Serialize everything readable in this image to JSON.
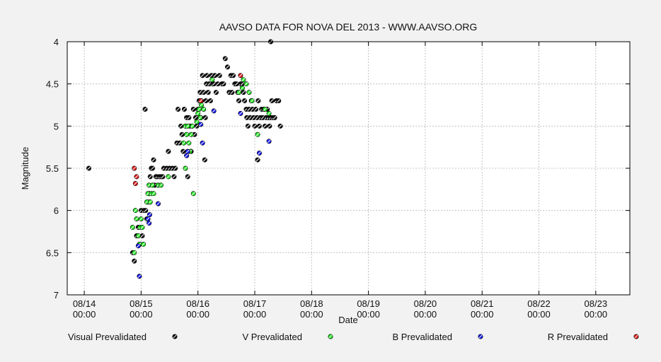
{
  "chart_data": {
    "type": "scatter",
    "title": "AAVSO DATA FOR NOVA DEL 2013 - WWW.AAVSO.ORG",
    "xlabel": "Date",
    "ylabel": "Magnitude",
    "x_ticks": [
      {
        "day": 14,
        "line1": "08/14",
        "line2": "00:00"
      },
      {
        "day": 15,
        "line1": "08/15",
        "line2": "00:00"
      },
      {
        "day": 16,
        "line1": "08/16",
        "line2": "00:00"
      },
      {
        "day": 17,
        "line1": "08/17",
        "line2": "00:00"
      },
      {
        "day": 18,
        "line1": "08/18",
        "line2": "00:00"
      },
      {
        "day": 19,
        "line1": "08/19",
        "line2": "00:00"
      },
      {
        "day": 20,
        "line1": "08/20",
        "line2": "00:00"
      },
      {
        "day": 21,
        "line1": "08/21",
        "line2": "00:00"
      },
      {
        "day": 22,
        "line1": "08/22",
        "line2": "00:00"
      },
      {
        "day": 23,
        "line1": "08/23",
        "line2": "00:00"
      }
    ],
    "x_range_days": [
      13.7,
      23.6
    ],
    "y_ticks": [
      "4",
      "4.5",
      "5",
      "5.5",
      "6",
      "6.5",
      "7"
    ],
    "y_range": [
      4,
      7
    ],
    "y_inverted": true,
    "grid": true,
    "legend_position": "bottom",
    "series": [
      {
        "name": "Visual Prevalidated",
        "color": "#111111",
        "points": [
          [
            14.08,
            5.5
          ],
          [
            14.85,
            6.5
          ],
          [
            14.88,
            6.6
          ],
          [
            14.92,
            6.3
          ],
          [
            14.95,
            6.2
          ],
          [
            14.98,
            6.4
          ],
          [
            15.0,
            6.0
          ],
          [
            15.02,
            6.3
          ],
          [
            15.05,
            6.0
          ],
          [
            15.07,
            4.8
          ],
          [
            15.08,
            6.0
          ],
          [
            15.1,
            6.1
          ],
          [
            15.12,
            5.9
          ],
          [
            15.14,
            5.8
          ],
          [
            15.15,
            5.9
          ],
          [
            15.16,
            5.6
          ],
          [
            15.18,
            5.5
          ],
          [
            15.2,
            5.5
          ],
          [
            15.22,
            5.4
          ],
          [
            15.24,
            5.7
          ],
          [
            15.26,
            5.6
          ],
          [
            15.28,
            5.6
          ],
          [
            15.3,
            5.7
          ],
          [
            15.32,
            5.6
          ],
          [
            15.35,
            5.6
          ],
          [
            15.38,
            5.6
          ],
          [
            15.4,
            5.5
          ],
          [
            15.45,
            5.5
          ],
          [
            15.48,
            5.3
          ],
          [
            15.5,
            5.5
          ],
          [
            15.55,
            5.5
          ],
          [
            15.58,
            5.6
          ],
          [
            15.6,
            5.5
          ],
          [
            15.63,
            5.2
          ],
          [
            15.65,
            4.8
          ],
          [
            15.68,
            5.2
          ],
          [
            15.7,
            5.0
          ],
          [
            15.72,
            5.1
          ],
          [
            15.74,
            5.3
          ],
          [
            15.76,
            4.8
          ],
          [
            15.78,
            5.0
          ],
          [
            15.8,
            4.9
          ],
          [
            15.82,
            5.6
          ],
          [
            15.84,
            4.9
          ],
          [
            15.86,
            5.0
          ],
          [
            15.88,
            5.3
          ],
          [
            15.9,
            5.0
          ],
          [
            15.92,
            4.8
          ],
          [
            15.94,
            5.1
          ],
          [
            15.96,
            4.9
          ],
          [
            15.98,
            5.0
          ],
          [
            16.0,
            4.8
          ],
          [
            16.02,
            4.7
          ],
          [
            16.04,
            4.6
          ],
          [
            16.05,
            4.9
          ],
          [
            16.06,
            4.7
          ],
          [
            16.08,
            4.4
          ],
          [
            16.1,
            4.6
          ],
          [
            16.12,
            5.4
          ],
          [
            16.13,
            4.9
          ],
          [
            16.14,
            4.7
          ],
          [
            16.15,
            4.5
          ],
          [
            16.16,
            4.4
          ],
          [
            16.18,
            4.6
          ],
          [
            16.2,
            4.5
          ],
          [
            16.22,
            4.7
          ],
          [
            16.24,
            4.4
          ],
          [
            16.26,
            4.5
          ],
          [
            16.28,
            4.5
          ],
          [
            16.3,
            4.4
          ],
          [
            16.32,
            4.6
          ],
          [
            16.35,
            4.5
          ],
          [
            16.38,
            4.4
          ],
          [
            16.42,
            4.5
          ],
          [
            16.45,
            4.5
          ],
          [
            16.48,
            4.2
          ],
          [
            16.52,
            4.3
          ],
          [
            16.55,
            4.6
          ],
          [
            16.58,
            4.4
          ],
          [
            16.6,
            4.6
          ],
          [
            16.62,
            4.4
          ],
          [
            16.65,
            4.5
          ],
          [
            16.68,
            4.5
          ],
          [
            16.7,
            4.6
          ],
          [
            16.72,
            4.7
          ],
          [
            16.75,
            4.5
          ],
          [
            16.78,
            4.5
          ],
          [
            16.8,
            4.6
          ],
          [
            16.82,
            4.7
          ],
          [
            16.85,
            4.8
          ],
          [
            16.86,
            4.9
          ],
          [
            16.88,
            5.0
          ],
          [
            16.9,
            4.8
          ],
          [
            16.92,
            4.9
          ],
          [
            16.94,
            4.7
          ],
          [
            16.96,
            4.8
          ],
          [
            16.98,
            4.9
          ],
          [
            17.0,
            5.0
          ],
          [
            17.02,
            4.8
          ],
          [
            17.04,
            4.9
          ],
          [
            17.06,
            4.7
          ],
          [
            17.08,
            5.0
          ],
          [
            17.1,
            4.9
          ],
          [
            17.12,
            4.8
          ],
          [
            17.14,
            4.9
          ],
          [
            17.16,
            4.8
          ],
          [
            17.18,
            5.0
          ],
          [
            17.2,
            4.9
          ],
          [
            17.22,
            4.8
          ],
          [
            17.24,
            4.9
          ],
          [
            17.26,
            5.0
          ],
          [
            17.28,
            4.9
          ],
          [
            17.3,
            4.7
          ],
          [
            17.32,
            4.9
          ],
          [
            17.35,
            4.9
          ],
          [
            17.38,
            4.7
          ],
          [
            17.42,
            4.7
          ],
          [
            17.45,
            5.0
          ],
          [
            17.28,
            4.0
          ],
          [
            17.05,
            5.4
          ]
        ]
      },
      {
        "name": "V Prevalidated",
        "color": "#22e822",
        "points": [
          [
            14.88,
            6.5
          ],
          [
            14.9,
            6.0
          ],
          [
            14.92,
            6.1
          ],
          [
            14.95,
            6.3
          ],
          [
            14.97,
            6.4
          ],
          [
            14.98,
            6.2
          ],
          [
            15.0,
            6.1
          ],
          [
            15.02,
            6.2
          ],
          [
            15.04,
            6.4
          ],
          [
            14.85,
            6.2
          ],
          [
            15.1,
            5.9
          ],
          [
            15.12,
            5.8
          ],
          [
            15.14,
            5.7
          ],
          [
            15.16,
            5.9
          ],
          [
            15.18,
            5.8
          ],
          [
            15.2,
            5.7
          ],
          [
            15.22,
            5.8
          ],
          [
            15.3,
            5.7
          ],
          [
            15.35,
            5.7
          ],
          [
            15.48,
            5.6
          ],
          [
            15.75,
            5.2
          ],
          [
            15.78,
            5.0
          ],
          [
            15.8,
            5.1
          ],
          [
            15.82,
            5.0
          ],
          [
            15.84,
            5.2
          ],
          [
            15.86,
            5.3
          ],
          [
            15.88,
            5.1
          ],
          [
            15.9,
            5.0
          ],
          [
            15.78,
            5.5
          ],
          [
            15.92,
            5.8
          ],
          [
            15.98,
            4.95
          ],
          [
            16.0,
            4.85
          ],
          [
            16.02,
            4.8
          ],
          [
            16.04,
            4.9
          ],
          [
            16.06,
            4.75
          ],
          [
            16.1,
            4.8
          ],
          [
            16.25,
            4.45
          ],
          [
            16.72,
            4.6
          ],
          [
            16.78,
            4.55
          ],
          [
            16.8,
            4.45
          ],
          [
            16.85,
            4.5
          ],
          [
            16.9,
            4.6
          ],
          [
            16.95,
            4.7
          ],
          [
            17.05,
            5.1
          ],
          [
            17.18,
            4.8
          ],
          [
            17.25,
            4.85
          ]
        ]
      },
      {
        "name": "B Prevalidated",
        "color": "#1a1aee",
        "points": [
          [
            14.95,
            6.42
          ],
          [
            14.97,
            6.78
          ],
          [
            15.12,
            6.1
          ],
          [
            15.14,
            6.15
          ],
          [
            15.15,
            6.05
          ],
          [
            15.3,
            5.92
          ],
          [
            15.8,
            5.35
          ],
          [
            15.82,
            5.3
          ],
          [
            16.08,
            5.2
          ],
          [
            16.05,
            4.98
          ],
          [
            16.28,
            4.82
          ],
          [
            16.75,
            4.85
          ],
          [
            17.08,
            5.32
          ],
          [
            17.25,
            5.18
          ]
        ]
      },
      {
        "name": "R Prevalidated",
        "color": "#e01a1a",
        "points": [
          [
            14.88,
            5.5
          ],
          [
            14.9,
            5.68
          ],
          [
            14.92,
            5.6
          ],
          [
            16.05,
            4.7
          ],
          [
            16.75,
            4.4
          ]
        ]
      }
    ]
  }
}
